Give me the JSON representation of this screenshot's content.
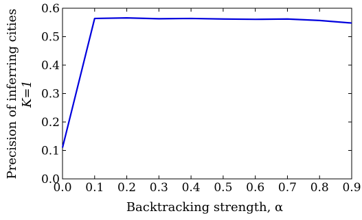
{
  "chart_data": {
    "type": "line",
    "title": "",
    "xlabel": "Backtracking strength, α",
    "ylabel_lines": [
      "Precision of inferring cities",
      "K=1"
    ],
    "xlim": [
      0.0,
      0.9
    ],
    "ylim": [
      0.0,
      0.6
    ],
    "xticks": [
      "0.0",
      "0.1",
      "0.2",
      "0.3",
      "0.4",
      "0.5",
      "0.6",
      "0.7",
      "0.8",
      "0.9"
    ],
    "yticks": [
      "0.0",
      "0.1",
      "0.2",
      "0.3",
      "0.4",
      "0.5",
      "0.6"
    ],
    "grid": false,
    "series": [
      {
        "color": "#0000dd",
        "x": [
          0.0,
          0.1,
          0.2,
          0.3,
          0.4,
          0.5,
          0.6,
          0.7,
          0.8,
          0.9
        ],
        "y": [
          0.11,
          0.564,
          0.566,
          0.563,
          0.564,
          0.562,
          0.561,
          0.562,
          0.557,
          0.548
        ]
      }
    ]
  }
}
